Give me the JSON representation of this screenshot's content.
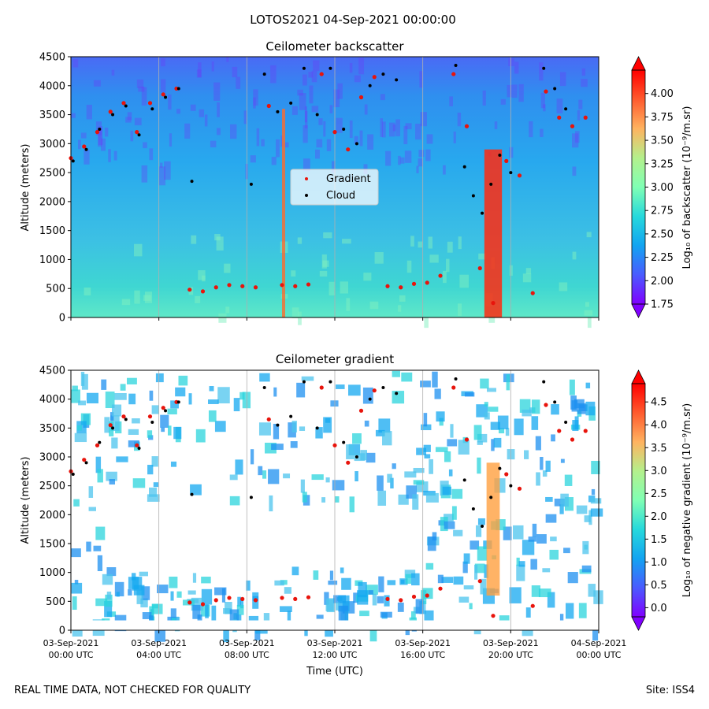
{
  "figure": {
    "suptitle": "LOTOS2021 04-Sep-2021 00:00:00",
    "footer_left": "REAL TIME DATA, NOT CHECKED FOR QUALITY",
    "footer_right": "Site: ISS4"
  },
  "chart_data": [
    {
      "type": "heatmap",
      "title": "Ceilometer backscatter",
      "xlabel": "",
      "ylabel": "Altitude (meters)",
      "ylim": [
        0,
        4500
      ],
      "yticks": [
        0,
        500,
        1000,
        1500,
        2000,
        2500,
        3000,
        3500,
        4000,
        4500
      ],
      "xlim_hours": [
        0,
        24
      ],
      "xtick_hours": [
        0,
        4,
        8,
        12,
        16,
        20,
        24
      ],
      "grid": "vertical lines every 4 h",
      "colorscale": "rainbow",
      "colorbar": {
        "label": "Log₁₀ of backscatter (10⁻⁹/m.sr)",
        "range": [
          1.75,
          4.25
        ],
        "ticks": [
          "1.75",
          "2.00",
          "2.25",
          "2.50",
          "2.75",
          "3.00",
          "3.25",
          "3.50",
          "3.75",
          "4.00"
        ],
        "tick_values": [
          1.75,
          2.0,
          2.25,
          2.5,
          2.75,
          3.0,
          3.25,
          3.5,
          3.75,
          4.0
        ]
      },
      "legend": {
        "placement": "center",
        "entries": [
          {
            "name": "Gradient",
            "color": "#e8140c"
          },
          {
            "name": "Cloud",
            "color": "#000000"
          }
        ]
      },
      "series": [
        {
          "name": "Gradient",
          "x_hours": [
            0.0,
            0.6,
            1.2,
            1.8,
            2.4,
            3.0,
            3.6,
            4.2,
            4.8,
            5.4,
            6.0,
            6.6,
            7.2,
            7.8,
            8.4,
            9.0,
            9.6,
            10.2,
            10.8,
            11.4,
            12.0,
            12.6,
            13.2,
            13.8,
            14.4,
            15.0,
            15.6,
            16.2,
            16.8,
            17.4,
            18.0,
            18.6,
            19.2,
            19.8,
            20.4,
            21.0,
            21.6,
            22.2,
            22.8,
            23.4
          ],
          "altitude_m": [
            2750,
            2950,
            3200,
            3550,
            3700,
            3200,
            3700,
            3850,
            3950,
            480,
            450,
            520,
            560,
            540,
            520,
            3650,
            560,
            540,
            570,
            4200,
            3200,
            2900,
            3800,
            4150,
            540,
            520,
            580,
            600,
            720,
            4200,
            3300,
            850,
            250,
            2700,
            2450,
            420,
            3900,
            3450,
            3300,
            3450
          ]
        },
        {
          "name": "Cloud",
          "x_hours": [
            0.1,
            0.7,
            1.3,
            1.9,
            2.5,
            3.1,
            3.7,
            4.3,
            4.9,
            5.5,
            8.2,
            8.8,
            9.4,
            10.0,
            10.6,
            11.2,
            11.8,
            12.4,
            13.0,
            13.6,
            14.2,
            14.8,
            17.5,
            17.9,
            18.3,
            18.7,
            19.1,
            19.5,
            20.0,
            21.5,
            22.0,
            22.5
          ],
          "altitude_m": [
            2700,
            2900,
            3250,
            3500,
            3650,
            3150,
            3600,
            3800,
            3950,
            2350,
            2300,
            4200,
            3550,
            3700,
            4300,
            3500,
            4300,
            3250,
            3000,
            4000,
            4200,
            4100,
            4350,
            2600,
            2100,
            1800,
            2300,
            2800,
            2500,
            4300,
            3950,
            3600
          ]
        }
      ]
    },
    {
      "type": "heatmap",
      "title": "Ceilometer gradient",
      "xlabel": "Time (UTC)",
      "ylabel": "Altitude (meters)",
      "ylim": [
        0,
        4500
      ],
      "yticks": [
        0,
        500,
        1000,
        1500,
        2000,
        2500,
        3000,
        3500,
        4000,
        4500
      ],
      "xlim_hours": [
        0,
        24
      ],
      "xtick_hours": [
        0,
        4,
        8,
        12,
        16,
        20,
        24
      ],
      "xtick_labels": [
        [
          "03-Sep-2021",
          "00:00 UTC"
        ],
        [
          "03-Sep-2021",
          "04:00 UTC"
        ],
        [
          "03-Sep-2021",
          "08:00 UTC"
        ],
        [
          "03-Sep-2021",
          "12:00 UTC"
        ],
        [
          "03-Sep-2021",
          "16:00 UTC"
        ],
        [
          "03-Sep-2021",
          "20:00 UTC"
        ],
        [
          "04-Sep-2021",
          "00:00 UTC"
        ]
      ],
      "grid": "vertical lines every 4 h",
      "colorscale": "rainbow",
      "colorbar": {
        "label": "Log₁₀ of negative gradient (10⁻⁹/m.sr)",
        "range": [
          -0.2,
          4.9
        ],
        "ticks": [
          "0.0",
          "0.5",
          "1.0",
          "1.5",
          "2.0",
          "2.5",
          "3.0",
          "3.5",
          "4.0",
          "4.5"
        ],
        "tick_values": [
          0.0,
          0.5,
          1.0,
          1.5,
          2.0,
          2.5,
          3.0,
          3.5,
          4.0,
          4.5
        ]
      },
      "series": [
        {
          "name": "Gradient",
          "x_hours": [
            0.0,
            0.6,
            1.2,
            1.8,
            2.4,
            3.0,
            3.6,
            4.2,
            4.8,
            5.4,
            6.0,
            6.6,
            7.2,
            7.8,
            8.4,
            9.0,
            9.6,
            10.2,
            10.8,
            11.4,
            12.0,
            12.6,
            13.2,
            13.8,
            14.4,
            15.0,
            15.6,
            16.2,
            16.8,
            17.4,
            18.0,
            18.6,
            19.2,
            19.8,
            20.4,
            21.0,
            21.6,
            22.2,
            22.8,
            23.4
          ],
          "altitude_m": [
            2750,
            2950,
            3200,
            3550,
            3700,
            3200,
            3700,
            3850,
            3950,
            480,
            450,
            520,
            560,
            540,
            520,
            3650,
            560,
            540,
            570,
            4200,
            3200,
            2900,
            3800,
            4150,
            540,
            520,
            580,
            600,
            720,
            4200,
            3300,
            850,
            250,
            2700,
            2450,
            420,
            3900,
            3450,
            3300,
            3450
          ]
        },
        {
          "name": "Cloud",
          "x_hours": [
            0.1,
            0.7,
            1.3,
            1.9,
            2.5,
            3.1,
            3.7,
            4.3,
            4.9,
            5.5,
            8.2,
            8.8,
            9.4,
            10.0,
            10.6,
            11.2,
            11.8,
            12.4,
            13.0,
            13.6,
            14.2,
            14.8,
            17.5,
            17.9,
            18.3,
            18.7,
            19.1,
            19.5,
            20.0,
            21.5,
            22.0,
            22.5
          ],
          "altitude_m": [
            2700,
            2900,
            3250,
            3500,
            3650,
            3150,
            3600,
            3800,
            3950,
            2350,
            2300,
            4200,
            3550,
            3700,
            4300,
            3500,
            4300,
            3250,
            3000,
            4000,
            4200,
            4100,
            4350,
            2600,
            2100,
            1800,
            2300,
            2800,
            2500,
            4300,
            3950,
            3600
          ]
        }
      ]
    }
  ]
}
